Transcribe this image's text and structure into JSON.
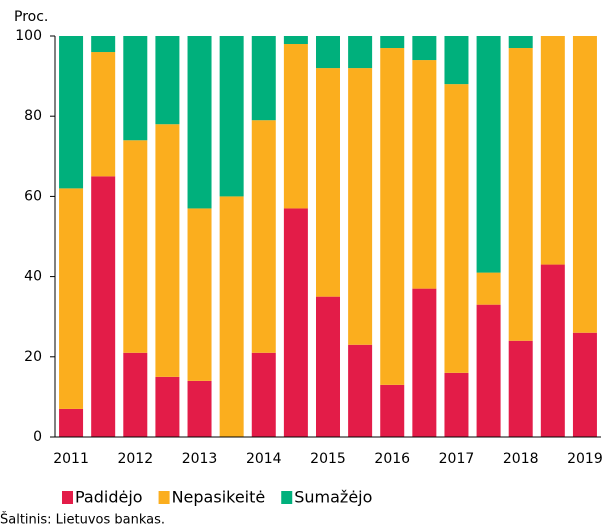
{
  "chart_data": {
    "type": "stacked_bar",
    "y_label": "Proc.",
    "categories": [
      "2011",
      null,
      "2012",
      null,
      "2013",
      null,
      "2014",
      null,
      "2015",
      null,
      "2016",
      null,
      "2017",
      null,
      "2018",
      null,
      "2019"
    ],
    "series": [
      {
        "name": "Padidėjo",
        "color": "#e31c48",
        "values": [
          7,
          65,
          21,
          15,
          14,
          0,
          21,
          57,
          35,
          23,
          13,
          37,
          16,
          33,
          24,
          43,
          26
        ]
      },
      {
        "name": "Nepasikeitė",
        "color": "#fbae1e",
        "values": [
          55,
          31,
          53,
          63,
          43,
          60,
          58,
          41,
          57,
          69,
          84,
          57,
          72,
          8,
          73,
          57,
          74
        ]
      },
      {
        "name": "Sumažėjo",
        "color": "#00b07c",
        "values": [
          38,
          4,
          26,
          22,
          43,
          40,
          21,
          2,
          8,
          8,
          3,
          6,
          12,
          59,
          3,
          0,
          0
        ]
      }
    ],
    "ylim": [
      0,
      100
    ],
    "yticks": [
      0,
      20,
      40,
      60,
      80,
      100
    ],
    "source": "Šaltinis: Lietuvos bankas."
  }
}
